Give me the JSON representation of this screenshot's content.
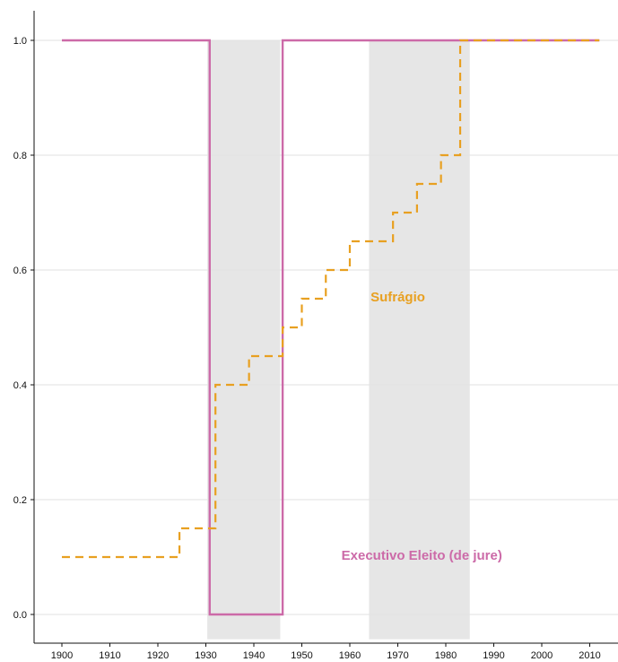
{
  "chart_data": {
    "type": "line",
    "title": "",
    "xlabel": "",
    "ylabel": "",
    "xlim": [
      1894,
      2016
    ],
    "ylim": [
      -0.04,
      1.05
    ],
    "x_ticks": [
      "1900",
      "1910",
      "1920",
      "1930",
      "1940",
      "1950",
      "1960",
      "1970",
      "1980",
      "1990",
      "2000",
      "2010"
    ],
    "y_ticks": [
      "0.0",
      "0.2",
      "0.4",
      "0.6",
      "0.8",
      "1.0"
    ],
    "grid": "horizontal",
    "shaded_periods": [
      {
        "start": 1930.3,
        "end": 1945.5
      },
      {
        "start": 1964,
        "end": 1985
      }
    ],
    "series": [
      {
        "name": "Executivo Eleito (de jure)",
        "color": "#cc6aa8",
        "style": "solid",
        "step": true,
        "x": [
          1900,
          1930.3,
          1930.8,
          1945.4,
          1946,
          2012
        ],
        "y": [
          1.0,
          1.0,
          0.0,
          0.0,
          1.0,
          1.0
        ]
      },
      {
        "name": "Sufrágio",
        "color": "#e8a021",
        "style": "dashed",
        "step": true,
        "x": [
          1900,
          1924.5,
          1932,
          1939,
          1946,
          1950,
          1955,
          1960,
          1969,
          1974,
          1979,
          1983,
          1988,
          2012
        ],
        "y": [
          0.1,
          0.15,
          0.4,
          0.45,
          0.5,
          0.55,
          0.6,
          0.65,
          0.7,
          0.75,
          0.8,
          1.0,
          1.0,
          1.0
        ]
      }
    ],
    "annotations": [
      {
        "text": "Sufrágio",
        "x": 1970,
        "y": 0.545
      },
      {
        "text": "Executivo Eleito (de jure)",
        "x": 1975,
        "y": 0.095
      }
    ]
  }
}
